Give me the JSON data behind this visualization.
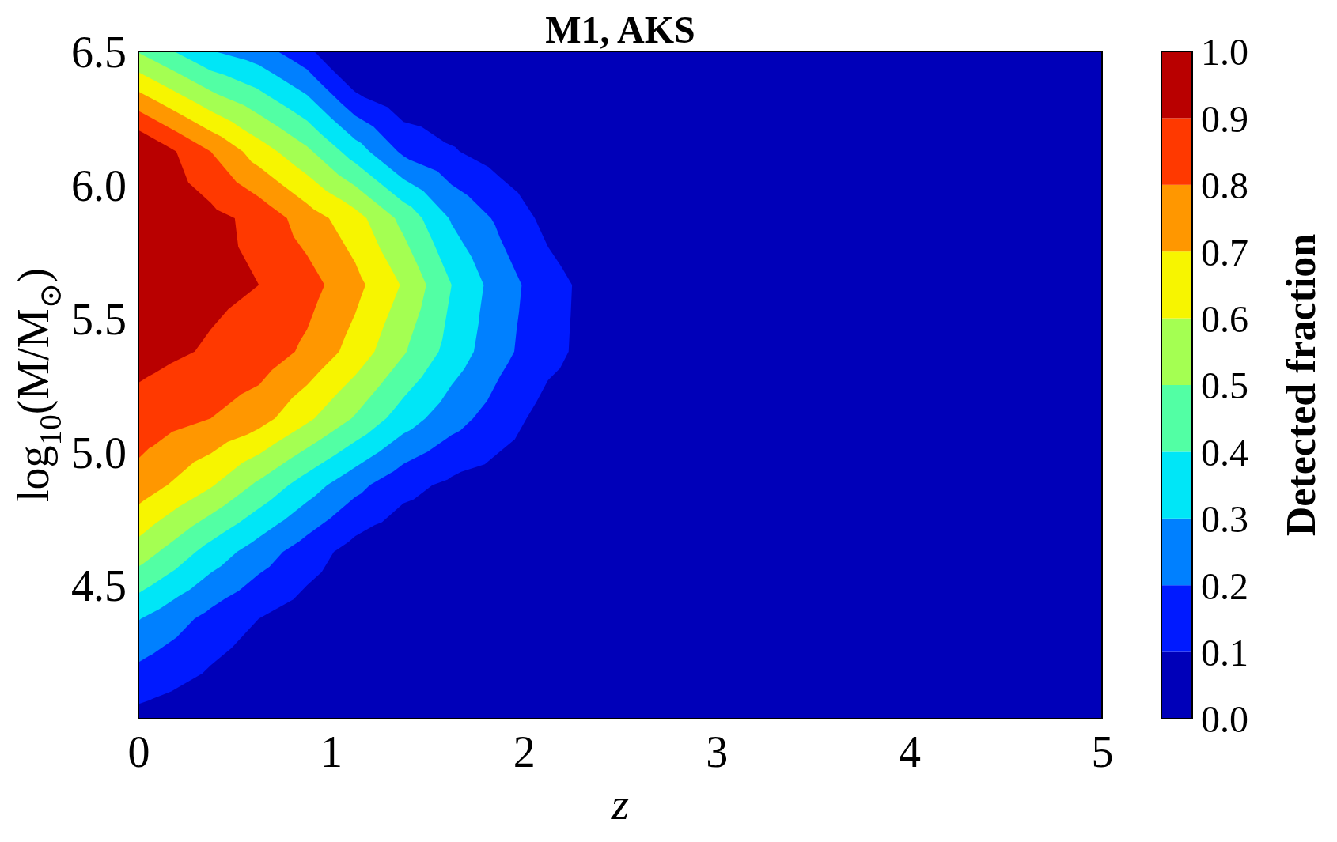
{
  "chart_data": {
    "type": "heatmap",
    "title": "M1, AKS",
    "xlabel": "z",
    "ylabel": "log$_{10}$(M/M$_{⊙}$)",
    "clabel": "Detected fraction",
    "xlim": [
      0,
      5
    ],
    "ylim": [
      4.0,
      6.5
    ],
    "xticks": [
      0,
      1,
      2,
      3,
      4,
      5
    ],
    "yticks": [
      4.5,
      {
        "value": 5,
        "label": "5.0"
      },
      5.5,
      {
        "value": 6,
        "label": "6.0"
      },
      6.5
    ],
    "clim": [
      0,
      1
    ],
    "cticks": [
      {
        "value": 0,
        "label": "0.0"
      },
      0.1,
      0.2,
      0.3,
      0.4,
      0.5,
      0.6,
      0.7,
      0.8,
      0.9,
      {
        "value": 1,
        "label": "1.0"
      }
    ],
    "colors": [
      "#0000b9",
      "#001aff",
      "#0080ff",
      "#00e6f7",
      "#52ffa4",
      "#a4ff52",
      "#f7f500",
      "#ff9700",
      "#ff3900",
      "#b90000"
    ],
    "cells": [
      [
        0.6,
        0.47,
        0.38,
        0.26,
        0.07,
        0,
        0,
        0,
        0,
        0,
        0,
        0,
        0,
        0,
        0,
        0,
        0,
        0,
        0,
        0
      ],
      [
        0.94,
        0.8,
        0.65,
        0.52,
        0.35,
        0.18,
        0.11,
        0.05,
        0,
        0,
        0,
        0,
        0,
        0,
        0,
        0,
        0,
        0,
        0,
        0
      ],
      [
        0.96,
        0.93,
        0.87,
        0.75,
        0.64,
        0.47,
        0.29,
        0.18,
        0.07,
        0,
        0,
        0,
        0,
        0,
        0,
        0,
        0,
        0,
        0,
        0
      ],
      [
        0.95,
        0.92,
        0.9,
        0.84,
        0.73,
        0.59,
        0.4,
        0.25,
        0.14,
        0.06,
        0.02,
        0,
        0,
        0,
        0,
        0,
        0,
        0,
        0,
        0
      ],
      [
        0.92,
        0.89,
        0.86,
        0.78,
        0.66,
        0.51,
        0.36,
        0.23,
        0.13,
        0.06,
        0.02,
        0,
        0,
        0,
        0,
        0,
        0,
        0,
        0,
        0
      ],
      [
        0.84,
        0.8,
        0.74,
        0.62,
        0.49,
        0.35,
        0.24,
        0.15,
        0.06,
        0.03,
        0,
        0,
        0,
        0,
        0,
        0,
        0,
        0,
        0,
        0
      ],
      [
        0.71,
        0.61,
        0.48,
        0.35,
        0.23,
        0.13,
        0.08,
        0.05,
        0.02,
        0,
        0,
        0,
        0,
        0,
        0,
        0,
        0,
        0,
        0,
        0
      ],
      [
        0.49,
        0.36,
        0.25,
        0.15,
        0.06,
        0.02,
        0.01,
        0,
        0,
        0,
        0,
        0,
        0,
        0,
        0,
        0,
        0,
        0,
        0,
        0
      ],
      [
        0.26,
        0.17,
        0.1,
        0.05,
        0.01,
        0,
        0,
        0,
        0,
        0,
        0,
        0,
        0,
        0,
        0,
        0,
        0,
        0,
        0,
        0
      ],
      [
        0.12,
        0.07,
        0.02,
        0,
        0,
        0,
        0,
        0,
        0,
        0,
        0,
        0,
        0,
        0,
        0,
        0,
        0,
        0,
        0,
        0
      ]
    ]
  }
}
